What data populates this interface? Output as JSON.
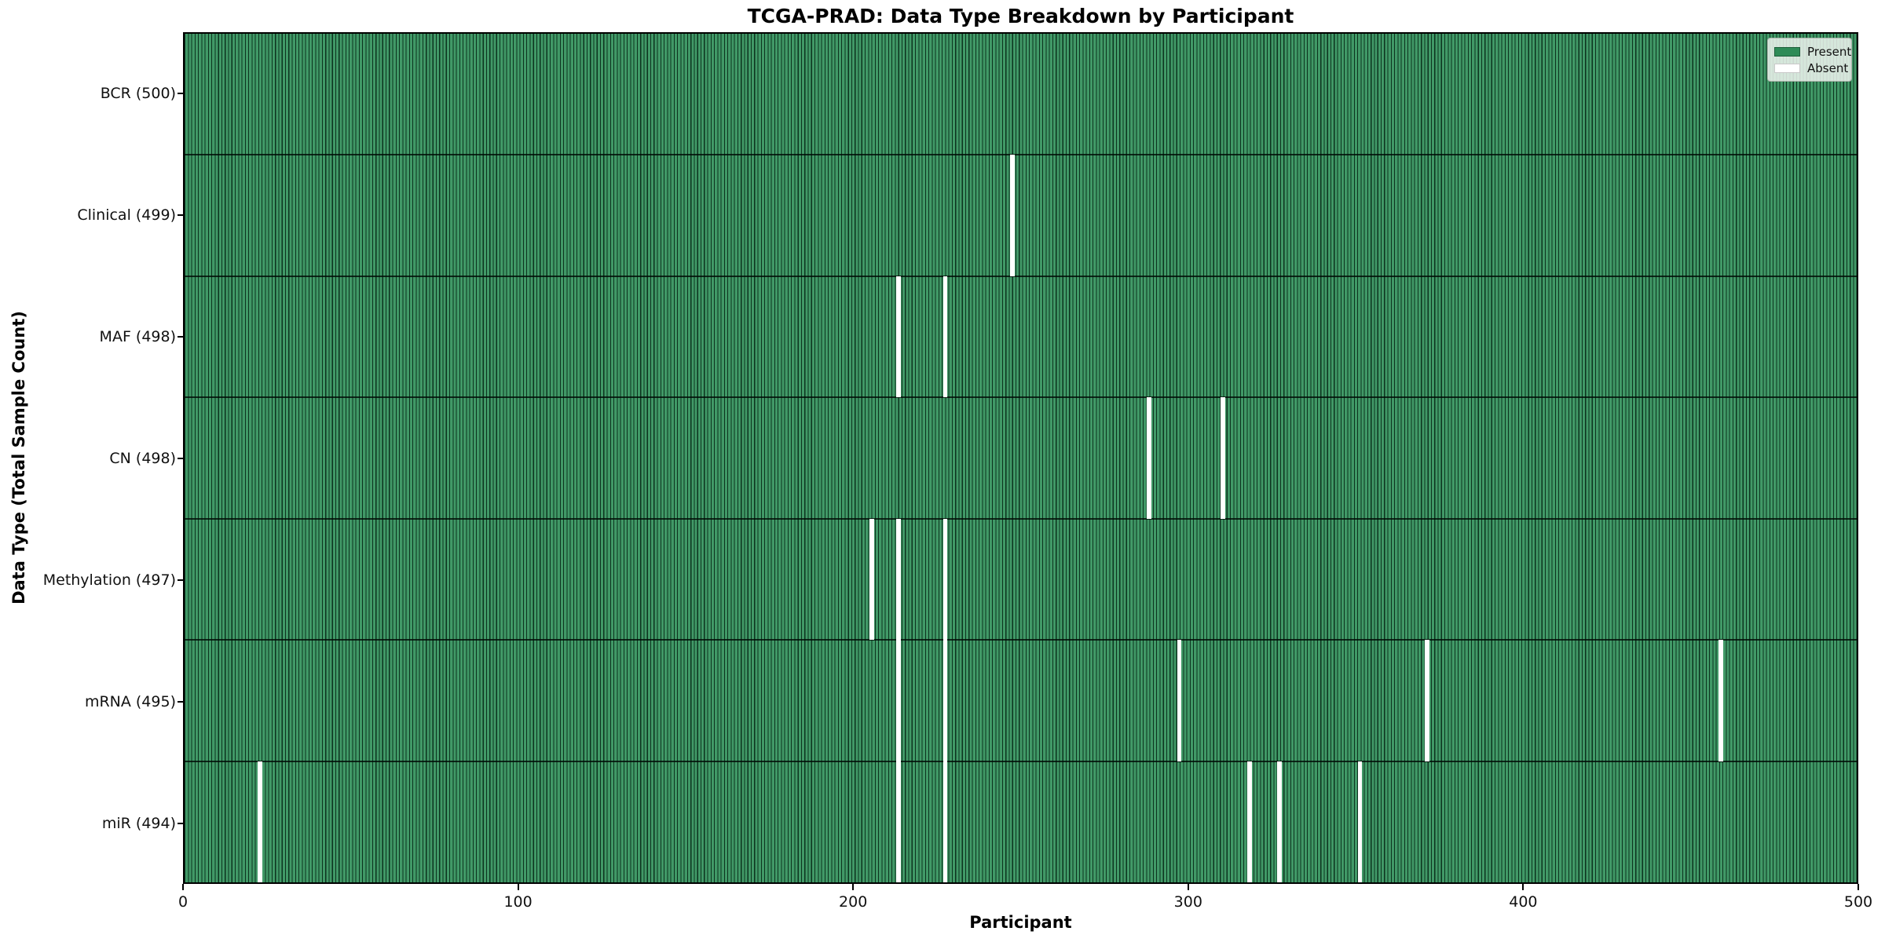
{
  "title": "TCGA-PRAD: Data Type Breakdown by Participant",
  "legend": {
    "present_label": "Present",
    "absent_label": "Absent"
  },
  "colors": {
    "present": "#2e8b57",
    "absent": "#ffffff",
    "cell_fill": "#37945f",
    "cell_edge": "#00180c"
  },
  "chart_data": {
    "type": "heatmap",
    "title": "TCGA-PRAD: Data Type Breakdown by Participant",
    "xlabel": "Participant",
    "ylabel": "Data Type (Total Sample Count)",
    "x_axis": {
      "min": 0,
      "max": 500,
      "ticks": [
        0,
        100,
        200,
        300,
        400,
        500
      ]
    },
    "n_participants": 500,
    "legend_position": "upper right",
    "grid": false,
    "rows": [
      {
        "name": "bcr",
        "label": "BCR (500)",
        "total": 500,
        "absent_participants": []
      },
      {
        "name": "clinical",
        "label": "Clinical (499)",
        "total": 499,
        "absent_participants": [
          247
        ]
      },
      {
        "name": "maf",
        "label": "MAF (498)",
        "total": 498,
        "absent_participants": [
          213,
          227
        ]
      },
      {
        "name": "cn",
        "label": "CN (498)",
        "total": 498,
        "absent_participants": [
          288,
          310
        ]
      },
      {
        "name": "methylation",
        "label": "Methylation (497)",
        "total": 497,
        "absent_participants": [
          205,
          213,
          227
        ]
      },
      {
        "name": "mrna",
        "label": "mRNA (495)",
        "total": 495,
        "absent_participants": [
          213,
          227,
          297,
          371,
          459
        ]
      },
      {
        "name": "mir",
        "label": "miR (494)",
        "total": 494,
        "absent_participants": [
          22,
          213,
          227,
          318,
          327,
          351
        ]
      }
    ],
    "legend_entries": [
      {
        "label": "Present",
        "color": "#2e8b57"
      },
      {
        "label": "Absent",
        "color": "#ffffff"
      }
    ]
  }
}
